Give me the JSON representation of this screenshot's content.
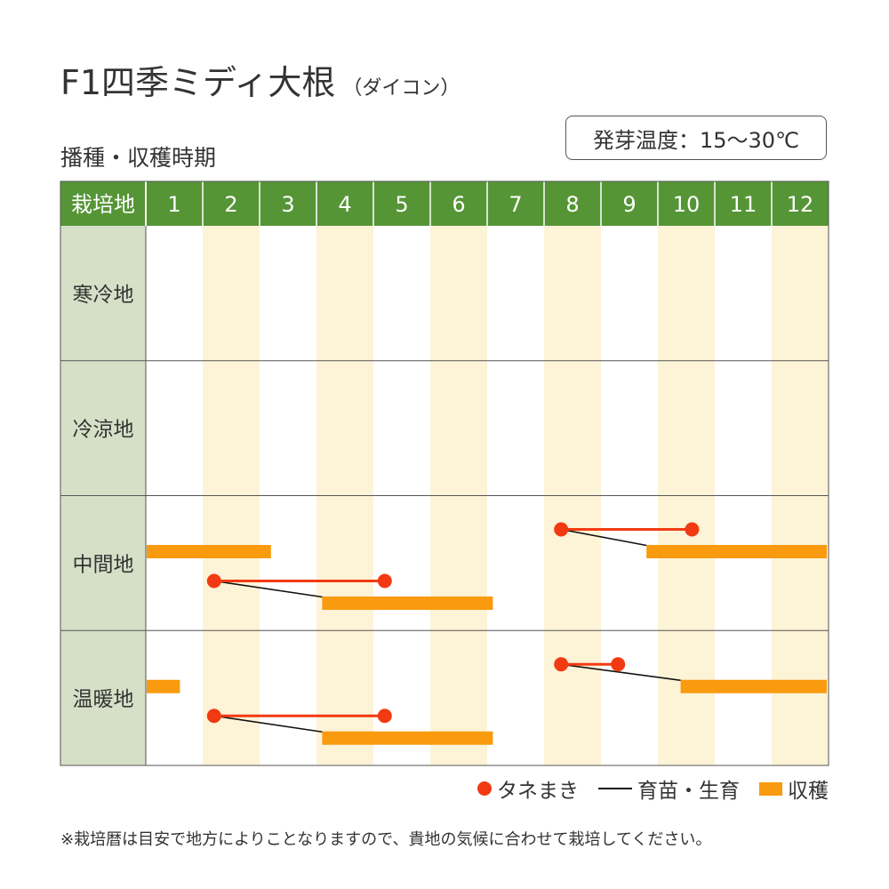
{
  "title": "F1四季ミディ大根",
  "title_sub": "（ダイコン）",
  "section_title": "播種・収穫時期",
  "germination_temp": "発芽温度：15～30℃",
  "note": "※栽培暦は目安で地方によりことなりますので、貴地の気候に合わせて栽培してください。",
  "colors": {
    "header_green": "#559536",
    "region_bg": "#d6e0c7",
    "alt_col": "#fdf3d6",
    "sowing": "#f23a12",
    "harvest": "#f99a0f",
    "growing": "#111111"
  },
  "legend": {
    "sowing": "タネまき",
    "growing": "育苗・生育",
    "harvest": "収穫"
  },
  "chart_data": {
    "type": "gantt",
    "header_label": "栽培地",
    "months": [
      "1",
      "2",
      "3",
      "4",
      "5",
      "6",
      "7",
      "8",
      "9",
      "10",
      "11",
      "12"
    ],
    "regions": [
      {
        "name": "寒冷地",
        "schedules": []
      },
      {
        "name": "冷涼地",
        "schedules": []
      },
      {
        "name": "中間地",
        "schedules": [
          {
            "lane": 0,
            "sowing": [
              8.3,
              10.6
            ],
            "harvest": [
              9.8,
              13.0
            ]
          },
          {
            "lane": 0,
            "harvest": [
              1.0,
              3.2
            ]
          },
          {
            "lane": 1,
            "sowing": [
              2.2,
              5.2
            ],
            "harvest": [
              4.1,
              7.1
            ]
          }
        ]
      },
      {
        "name": "温暖地",
        "schedules": [
          {
            "lane": 0,
            "sowing": [
              8.3,
              9.3
            ],
            "harvest": [
              10.4,
              13.0
            ]
          },
          {
            "lane": 0,
            "harvest": [
              1.0,
              1.6
            ]
          },
          {
            "lane": 1,
            "sowing": [
              2.2,
              5.2
            ],
            "harvest": [
              4.1,
              7.1
            ]
          }
        ]
      }
    ]
  }
}
